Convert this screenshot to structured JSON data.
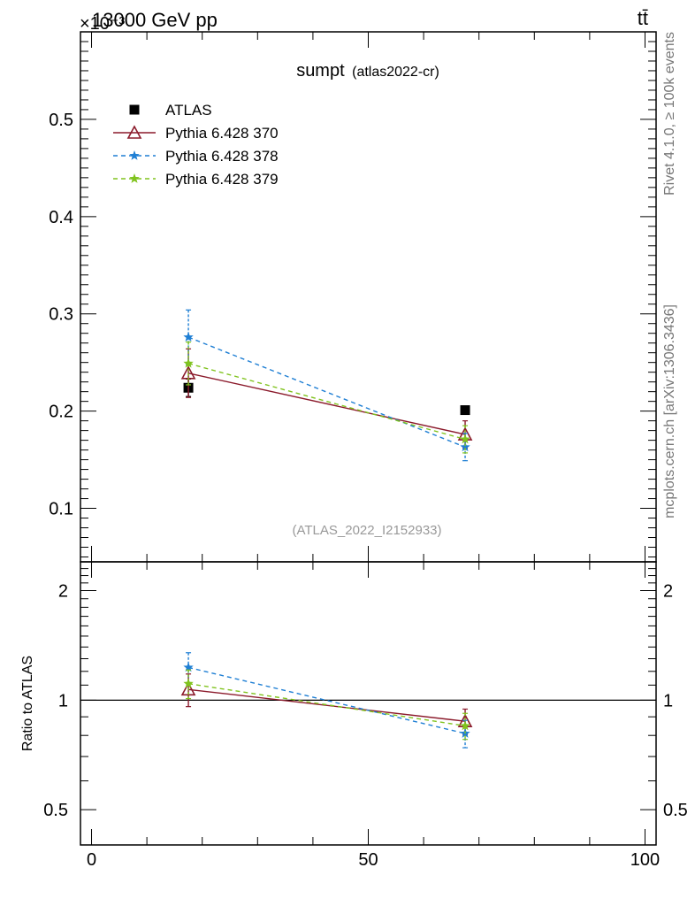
{
  "header": {
    "left": "13000 GeV pp",
    "right": "tt̄",
    "exponent": "×10⁻³"
  },
  "side_labels": {
    "rivet": "Rivet 4.1.0, ≥ 100k events",
    "mcplots": "mcplots.cern.ch [arXiv:1306.3436]"
  },
  "chart_data": [
    {
      "type": "scatter",
      "title": "sumpt",
      "subtitle": "(atlas2022-cr)",
      "watermark": "(ATLAS_2022_I2152933)",
      "xlim": [
        -2,
        102
      ],
      "ylim": [
        0.045,
        0.59
      ],
      "yscale_note": "values × 10⁻³",
      "yticks": [
        "0.1",
        "0.2",
        "0.3",
        "0.4",
        "0.5"
      ],
      "legend_position": "top-left",
      "series": [
        {
          "name": "ATLAS",
          "color": "#000000",
          "marker": "square",
          "x": [
            17.5,
            67.5
          ],
          "y": [
            0.224,
            0.201
          ],
          "err": [
            0.009,
            0.0
          ]
        },
        {
          "name": "Pythia 6.428 370",
          "color": "#8b1a2b",
          "marker": "triangle",
          "style": "solid",
          "x": [
            17.5,
            67.5
          ],
          "y": [
            0.239,
            0.176
          ],
          "err": [
            0.025,
            0.014
          ]
        },
        {
          "name": "Pythia 6.428 378",
          "color": "#1f7fd4",
          "marker": "star",
          "style": "dashed",
          "x": [
            17.5,
            67.5
          ],
          "y": [
            0.276,
            0.163
          ],
          "err": [
            0.028,
            0.014
          ]
        },
        {
          "name": "Pythia 6.428 379",
          "color": "#80c31e",
          "marker": "star",
          "style": "dashed",
          "x": [
            17.5,
            67.5
          ],
          "y": [
            0.249,
            0.171
          ],
          "err": [
            0.022,
            0.014
          ]
        }
      ]
    },
    {
      "type": "scatter",
      "ylabel": "Ratio to ATLAS",
      "xlim": [
        -2,
        102
      ],
      "ylim": [
        0.4,
        2.4
      ],
      "yscale": "log",
      "yticks": [
        "0.5",
        "1",
        "2"
      ],
      "xticks": [
        "0",
        "50",
        "100"
      ],
      "reference_line": 1,
      "series": [
        {
          "name": "Pythia 6.428 370",
          "color": "#8b1a2b",
          "marker": "triangle",
          "style": "solid",
          "x": [
            17.5,
            67.5
          ],
          "y": [
            1.07,
            0.875
          ],
          "err": [
            0.11,
            0.07
          ]
        },
        {
          "name": "Pythia 6.428 378",
          "color": "#1f7fd4",
          "marker": "star",
          "style": "dashed",
          "x": [
            17.5,
            67.5
          ],
          "y": [
            1.23,
            0.81
          ],
          "err": [
            0.12,
            0.07
          ]
        },
        {
          "name": "Pythia 6.428 379",
          "color": "#80c31e",
          "marker": "star",
          "style": "dashed",
          "x": [
            17.5,
            67.5
          ],
          "y": [
            1.11,
            0.85
          ],
          "err": [
            0.1,
            0.07
          ]
        }
      ]
    }
  ]
}
